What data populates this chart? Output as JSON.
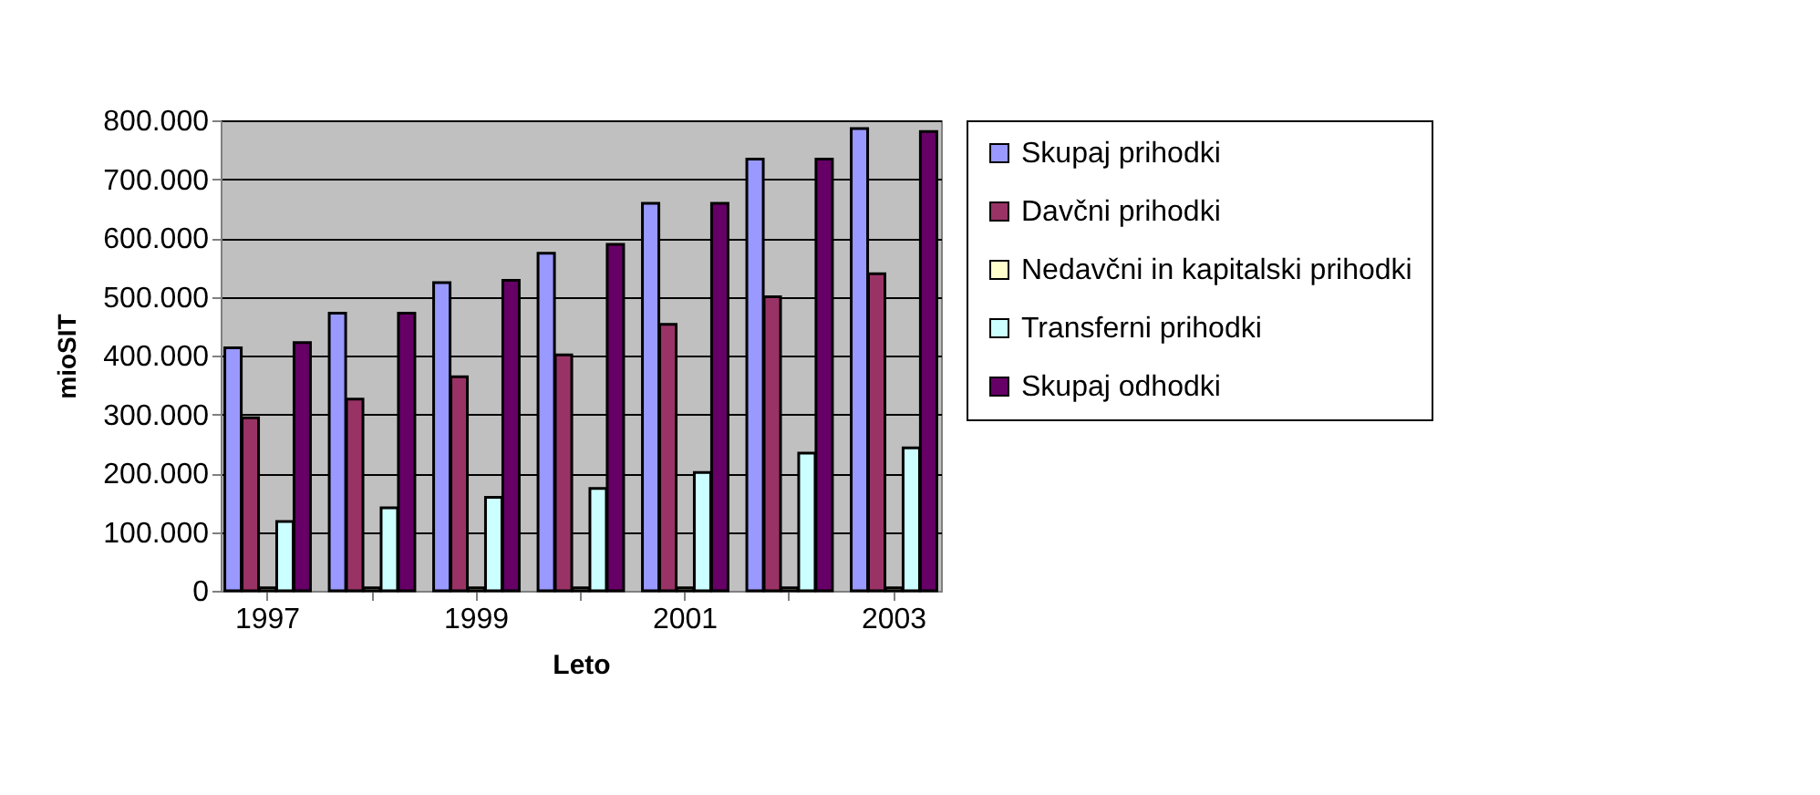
{
  "chart_data": {
    "type": "bar",
    "xlabel": "Leto",
    "ylabel": "mioSIT",
    "categories": [
      "1997",
      null,
      "1999",
      null,
      "2001",
      null,
      "2003"
    ],
    "series": [
      {
        "name": "Skupaj prihodki",
        "color": "#9999ff",
        "values": [
          413000,
          472000,
          524000,
          574000,
          659000,
          734000,
          786000
        ]
      },
      {
        "name": "Davčni prihodki",
        "color": "#993366",
        "values": [
          294000,
          326000,
          364000,
          401000,
          453000,
          500000,
          539000
        ]
      },
      {
        "name": "Nedavčni in kapitalski prihodki",
        "color": "#ffffcc",
        "values": [
          5000,
          5000,
          5000,
          5000,
          5000,
          5000,
          5000
        ]
      },
      {
        "name": "Transferni prihodki",
        "color": "#ccffff",
        "values": [
          118000,
          141000,
          159000,
          174000,
          201000,
          234000,
          243000
        ]
      },
      {
        "name": "Skupaj odhodki",
        "color": "#660066",
        "values": [
          422000,
          472000,
          528000,
          589000,
          659000,
          734000,
          781000
        ]
      }
    ],
    "ylim": [
      0,
      800000
    ],
    "yticks": [
      {
        "value": 0,
        "label": "0"
      },
      {
        "value": 100000,
        "label": "100.000"
      },
      {
        "value": 200000,
        "label": "200.000"
      },
      {
        "value": 300000,
        "label": "300.000"
      },
      {
        "value": 400000,
        "label": "400.000"
      },
      {
        "value": 500000,
        "label": "500.000"
      },
      {
        "value": 600000,
        "label": "600.000"
      },
      {
        "value": 700000,
        "label": "700.000"
      },
      {
        "value": 800000,
        "label": "800.000"
      }
    ],
    "grid": "y",
    "legend": "right"
  }
}
